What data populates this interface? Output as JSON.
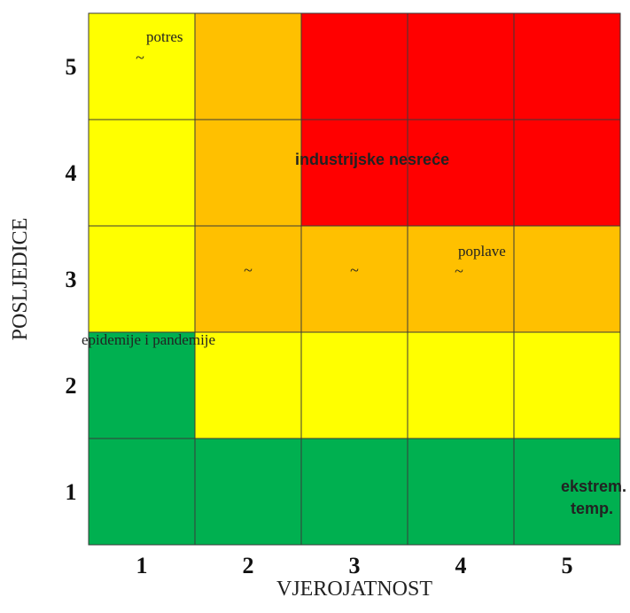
{
  "chart_data": {
    "type": "heatmap",
    "xlabel": "VJEROJATNOST",
    "ylabel": "POSLJEDICE",
    "x_categories": [
      "1",
      "2",
      "3",
      "4",
      "5"
    ],
    "y_categories": [
      "1",
      "2",
      "3",
      "4",
      "5"
    ],
    "palette": {
      "green": "#00b050",
      "yellow": "#ffff00",
      "orange": "#ffc000",
      "red": "#ff0000"
    },
    "rows": [
      {
        "y": "5",
        "colors": [
          "yellow",
          "orange",
          "red",
          "red",
          "red"
        ]
      },
      {
        "y": "4",
        "colors": [
          "yellow",
          "orange",
          "red",
          "red",
          "red"
        ]
      },
      {
        "y": "3",
        "colors": [
          "yellow",
          "orange",
          "orange",
          "orange",
          "orange"
        ]
      },
      {
        "y": "2",
        "colors": [
          "green",
          "yellow",
          "yellow",
          "yellow",
          "yellow"
        ]
      },
      {
        "y": "1",
        "colors": [
          "green",
          "green",
          "green",
          "green",
          "green"
        ]
      }
    ],
    "annotations": [
      {
        "text": "potres",
        "x": 1,
        "y": 5,
        "style": "serif"
      },
      {
        "text": "industrijske nesreće",
        "x": 2.5,
        "y": 4,
        "style": "bold"
      },
      {
        "text": "poplave",
        "x": 4,
        "y": 3,
        "style": "serif"
      },
      {
        "text": "epidemije i pandemije",
        "x": 1,
        "y": 2,
        "style": "serif"
      },
      {
        "text": "ekstrem.",
        "x": 5,
        "y": 1,
        "style": "bold"
      },
      {
        "text": "temp.",
        "x": 5,
        "y": 1,
        "style": "bold"
      }
    ],
    "markers": [
      {
        "symbol": "~",
        "x": 1,
        "y": 5
      },
      {
        "symbol": "~",
        "x": 2,
        "y": 3
      },
      {
        "symbol": "~",
        "x": 3,
        "y": 3
      },
      {
        "symbol": "~",
        "x": 4,
        "y": 3
      }
    ]
  }
}
